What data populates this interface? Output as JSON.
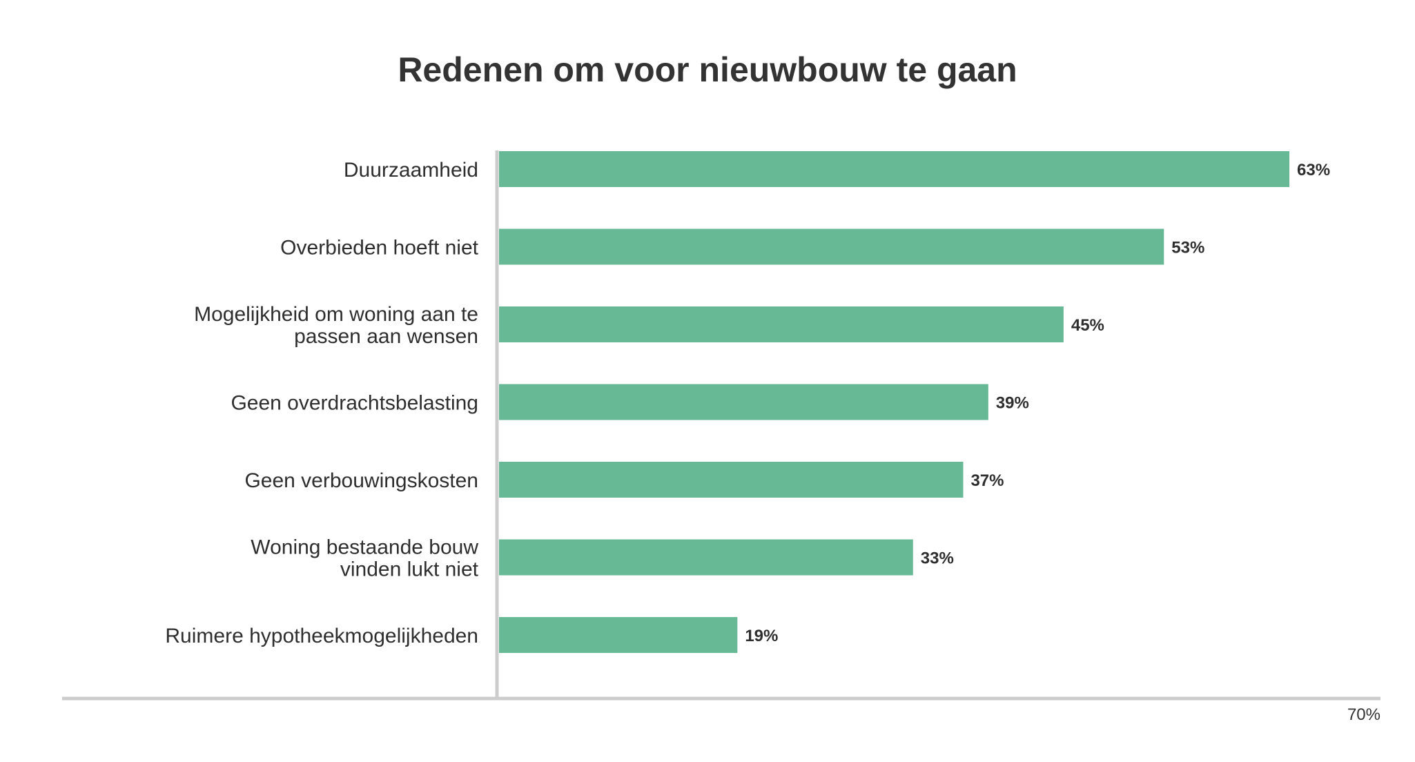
{
  "chart_data": {
    "type": "bar",
    "orientation": "horizontal",
    "title": "Redenen om voor nieuwbouw te gaan",
    "categories": [
      [
        "Duurzaamheid"
      ],
      [
        "Overbieden hoeft niet"
      ],
      [
        "Mogelijkheid om woning aan te",
        "passen aan wensen"
      ],
      [
        "Geen overdrachtsbelasting"
      ],
      [
        "Geen verbouwingskosten"
      ],
      [
        "Woning bestaande bouw",
        "vinden lukt niet"
      ],
      [
        "Ruimere hypotheekmogelijkheden"
      ]
    ],
    "values": [
      63,
      53,
      45,
      39,
      37,
      33,
      19
    ],
    "value_labels": [
      "63%",
      "53%",
      "45%",
      "39%",
      "37%",
      "33%",
      "19%"
    ],
    "xlim": [
      0,
      70
    ],
    "x_tick_labels": [
      "70%"
    ],
    "bar_color": "#66b994",
    "axis_color": "#cccccc",
    "grid": false,
    "legend": "none"
  }
}
